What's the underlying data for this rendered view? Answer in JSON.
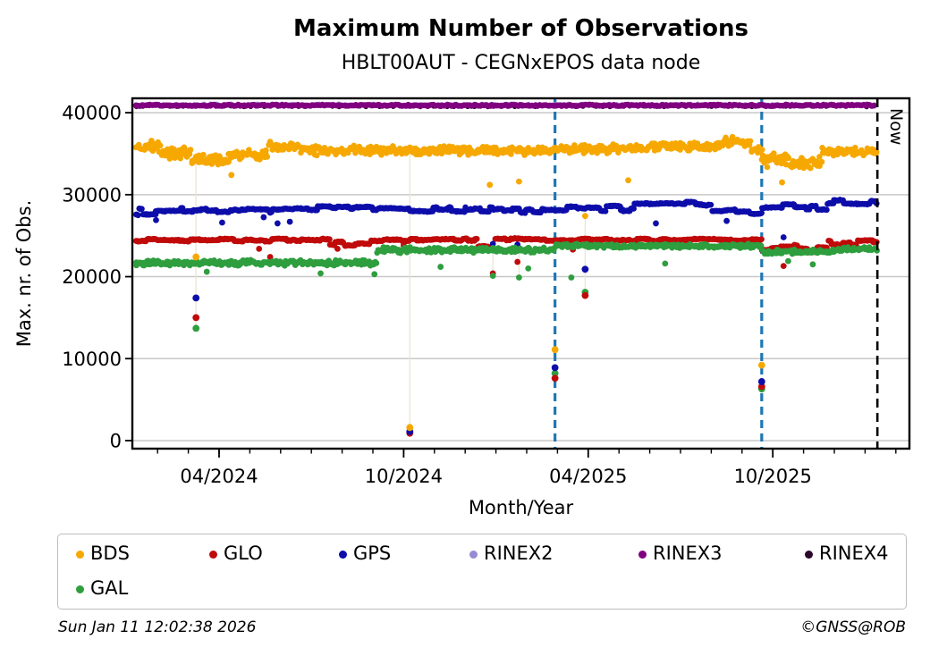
{
  "title": "Maximum Number of Observations",
  "subtitle": "HBLT00AUT - CEGNxEPOS data node",
  "footer": {
    "timestamp": "Sun Jan 11 12:02:38 2026",
    "credit": "©GNSS@ROB"
  },
  "now_label": "Now",
  "chart_data": {
    "type": "scatter",
    "title": "Maximum Number of Observations",
    "subtitle": "HBLT00AUT - CEGNxEPOS data node",
    "xlabel": "Month/Year",
    "ylabel": "Max. nr. of Obs.",
    "x_axis": {
      "unit": "months since 2024-01-01",
      "domain_months": [
        0.18,
        25.44
      ],
      "major_ticks": [
        {
          "month": 3,
          "label": "04/2024"
        },
        {
          "month": 9,
          "label": "10/2024"
        },
        {
          "month": 15,
          "label": "04/2025"
        },
        {
          "month": 21,
          "label": "10/2025"
        }
      ],
      "minor_tick_every_months": 1
    },
    "y_axis": {
      "ticks": [
        0,
        10000,
        20000,
        30000,
        40000
      ],
      "range": [
        -1000,
        41750
      ],
      "gridlines": true,
      "grid_color": "#c8c8c8"
    },
    "event_line_color": "#1f77b4",
    "now_line_color": "#000000",
    "connector_color": "#ece5d6",
    "maintenance_lines_months": [
      13.92,
      20.64
    ],
    "now_month": 24.4,
    "incidents": [
      {
        "month": 2.25,
        "values": {
          "BDS": 22400,
          "GPS": 17400,
          "GLO": 15000,
          "GAL": 13700
        }
      },
      {
        "month": 9.2,
        "values": {
          "BDS": 1600,
          "GPS": 1100,
          "GLO": 900,
          "GAL": 1050
        }
      },
      {
        "month": 13.92,
        "values": {
          "BDS": 11100,
          "GPS": 8900,
          "GLO": 7600,
          "GAL": 8200
        }
      },
      {
        "month": 14.9,
        "values": {
          "GPS": 20900,
          "GLO": 17700,
          "GAL": 18100
        }
      },
      {
        "month": 20.64,
        "values": {
          "BDS": 9200,
          "GPS": 7200,
          "GLO": 6600,
          "GAL": 6300
        }
      }
    ],
    "connectors": [
      {
        "month": 2.25,
        "from": 35000,
        "to": 13700
      },
      {
        "month": 9.2,
        "from": 35400,
        "to": 900
      },
      {
        "month": 14.9,
        "from": 28100,
        "to": 17700
      },
      {
        "month": 11.9,
        "from": 24400,
        "to": 20100
      },
      {
        "month": 12.75,
        "from": 24400,
        "to": 19900
      }
    ],
    "series": [
      {
        "name": "BDS",
        "color": "#F6A800",
        "style": "cloud",
        "segments": [
          [
            0.3,
            1.1,
            35900,
            800
          ],
          [
            1.1,
            2.1,
            35100,
            800
          ],
          [
            2.1,
            3.3,
            34200,
            700
          ],
          [
            3.3,
            4.6,
            34900,
            700
          ],
          [
            4.6,
            5.6,
            35900,
            600
          ],
          [
            5.6,
            9.2,
            35400,
            650
          ],
          [
            9.2,
            13.9,
            35400,
            650
          ],
          [
            13.9,
            17.0,
            35600,
            600
          ],
          [
            17.0,
            19.3,
            35900,
            650
          ],
          [
            19.3,
            20.3,
            36500,
            700
          ],
          [
            20.3,
            20.64,
            35500,
            800
          ],
          [
            20.64,
            21.6,
            34200,
            1100
          ],
          [
            21.6,
            22.6,
            33900,
            1100
          ],
          [
            22.6,
            24.4,
            35200,
            600
          ]
        ],
        "outliers": [
          [
            3.4,
            32400
          ],
          [
            11.8,
            31200
          ],
          [
            12.75,
            31600
          ],
          [
            14.9,
            27400
          ],
          [
            16.3,
            31750
          ],
          [
            21.3,
            31500
          ]
        ]
      },
      {
        "name": "GLO",
        "color": "#C00A0A",
        "style": "steps",
        "segments": [
          [
            0.3,
            6.6,
            24450,
            180
          ],
          [
            6.6,
            7.9,
            24100,
            450
          ],
          [
            7.9,
            9.2,
            24450,
            180
          ],
          [
            9.2,
            11.4,
            24500,
            160
          ],
          [
            11.4,
            11.95,
            23550,
            250
          ],
          [
            11.95,
            20.64,
            24500,
            170
          ],
          [
            20.64,
            21.8,
            23400,
            550
          ],
          [
            21.8,
            22.8,
            23300,
            500
          ],
          [
            22.8,
            24.4,
            24200,
            350
          ]
        ],
        "outliers": [
          [
            4.3,
            23400
          ],
          [
            4.66,
            22400
          ],
          [
            6.85,
            23400
          ],
          [
            9.0,
            23800
          ],
          [
            11.9,
            20400
          ],
          [
            12.7,
            21800
          ],
          [
            14.5,
            23300
          ],
          [
            21.35,
            21300
          ]
        ]
      },
      {
        "name": "GPS",
        "color": "#0D0DAA",
        "style": "steps",
        "segments": [
          [
            0.3,
            1.3,
            27900,
            500
          ],
          [
            1.3,
            2.6,
            28100,
            350
          ],
          [
            2.6,
            5.0,
            28100,
            350
          ],
          [
            5.0,
            9.2,
            28350,
            250
          ],
          [
            9.2,
            11.0,
            28200,
            300
          ],
          [
            11.0,
            13.92,
            28150,
            350
          ],
          [
            13.92,
            16.5,
            28300,
            350
          ],
          [
            16.5,
            19.0,
            29000,
            350
          ],
          [
            19.0,
            20.64,
            27900,
            350
          ],
          [
            20.64,
            23.0,
            28600,
            450
          ],
          [
            23.0,
            24.4,
            29100,
            300
          ]
        ],
        "outliers": [
          [
            0.95,
            26900
          ],
          [
            3.1,
            26600
          ],
          [
            4.45,
            27250
          ],
          [
            4.9,
            26500
          ],
          [
            5.3,
            26700
          ],
          [
            11.9,
            24000
          ],
          [
            12.7,
            23900
          ],
          [
            17.2,
            26500
          ],
          [
            19.5,
            26800
          ],
          [
            21.35,
            24800
          ]
        ]
      },
      {
        "name": "GAL",
        "color": "#2E9E3E",
        "style": "cloud",
        "segments": [
          [
            0.3,
            8.1,
            21700,
            400
          ],
          [
            8.1,
            13.92,
            23250,
            400
          ],
          [
            13.92,
            20.64,
            23750,
            280
          ],
          [
            20.64,
            23.1,
            23050,
            350
          ],
          [
            23.1,
            24.4,
            23350,
            300
          ]
        ],
        "outliers": [
          [
            2.6,
            20600
          ],
          [
            6.3,
            20400
          ],
          [
            8.05,
            20300
          ],
          [
            10.2,
            21200
          ],
          [
            11.9,
            20100
          ],
          [
            12.75,
            19900
          ],
          [
            13.05,
            21000
          ],
          [
            14.45,
            19900
          ],
          [
            17.5,
            21600
          ],
          [
            21.5,
            21900
          ],
          [
            22.3,
            21500
          ]
        ]
      },
      {
        "name": "RINEX2",
        "color": "#968AD4",
        "style": "constant",
        "constant": 40990
      },
      {
        "name": "RINEX3",
        "color": "#800080",
        "style": "constant",
        "constant": 40900
      },
      {
        "name": "RINEX4",
        "color": "#2B072B",
        "style": "constant",
        "constant": 40800
      }
    ],
    "legend_order": [
      "BDS",
      "GLO",
      "GPS",
      "RINEX2",
      "RINEX3",
      "RINEX4",
      "GAL"
    ]
  }
}
